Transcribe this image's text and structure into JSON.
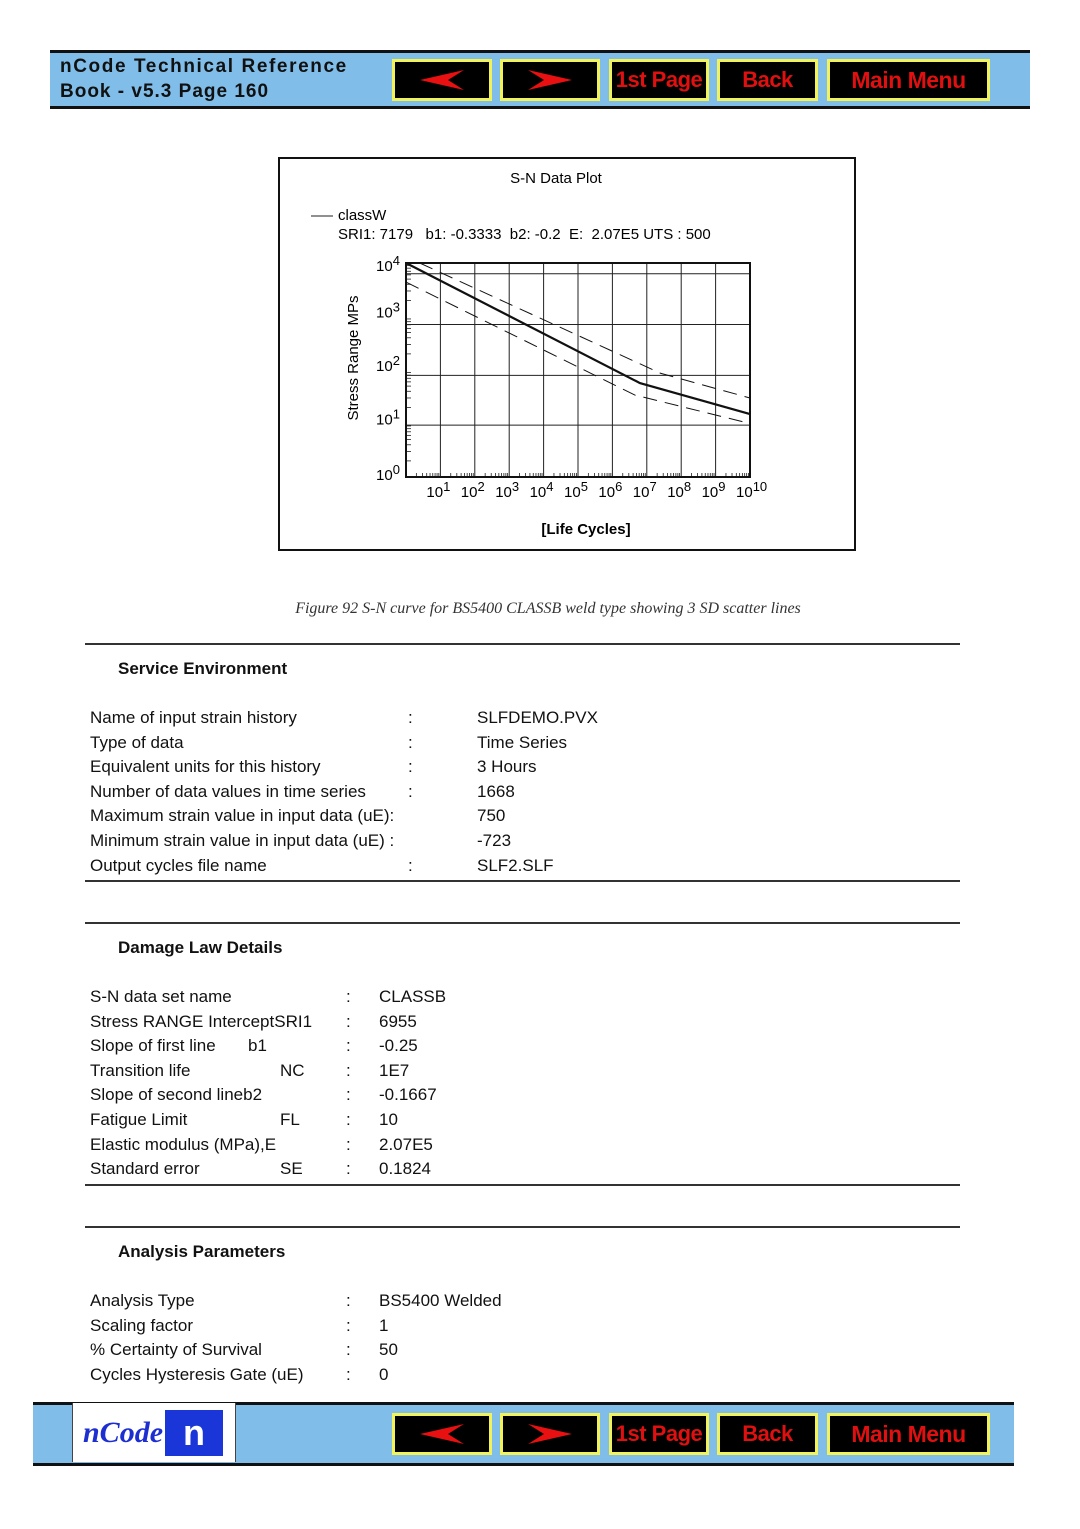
{
  "header": {
    "title_line1": "nCode Technical Reference",
    "title_line2": "Book - v5.3  Page 160"
  },
  "nav": {
    "prev_icon": "arrow-left-icon",
    "next_icon": "arrow-right-icon",
    "first_page": "1st Page",
    "back": "Back",
    "main_menu": "Main Menu"
  },
  "footer": {
    "logo_text": "nCode",
    "logo_mark": "n"
  },
  "colors": {
    "bar": "#80bde9",
    "button_bg": "#000000",
    "button_border": "#f2f25a",
    "button_text": "#e01010",
    "logo_blue": "#1a35d8"
  },
  "chart_data": {
    "type": "line",
    "title": "S-N Data Plot",
    "legend": {
      "entry": "classW",
      "placement": "top-left"
    },
    "params": "SRI1: 7179   b1: -0.3333  b2: -0.2  E:  2.07E5 UTS : 500",
    "xlabel": "[Life Cycles]",
    "ylabel": "Stress Range MPs",
    "xscale": "log",
    "yscale": "log",
    "xlim": [
      1,
      10000000000
    ],
    "ylim": [
      1,
      10000
    ],
    "x_ticks": [
      {
        "b": "10",
        "e": "1"
      },
      {
        "b": "10",
        "e": "2"
      },
      {
        "b": "10",
        "e": "3"
      },
      {
        "b": "10",
        "e": "4"
      },
      {
        "b": "10",
        "e": "5"
      },
      {
        "b": "10",
        "e": "6"
      },
      {
        "b": "10",
        "e": "7"
      },
      {
        "b": "10",
        "e": "8"
      },
      {
        "b": "10",
        "e": "9"
      },
      {
        "b": "10",
        "e": "10"
      }
    ],
    "y_ticks": [
      {
        "b": "10",
        "e": "0"
      },
      {
        "b": "10",
        "e": "1"
      },
      {
        "b": "10",
        "e": "2"
      },
      {
        "b": "10",
        "e": "3"
      },
      {
        "b": "10",
        "e": "4"
      }
    ],
    "grid": true,
    "series": [
      {
        "style": "solid",
        "points": [
          [
            1,
            10000
          ],
          [
            6300000,
            57
          ],
          [
            10000000000,
            15
          ]
        ]
      },
      {
        "style": "dashed",
        "points": [
          [
            2.5,
            10000
          ],
          [
            25000000,
            87
          ],
          [
            10000000000,
            30
          ]
        ]
      },
      {
        "style": "dashed",
        "points": [
          [
            1,
            4400
          ],
          [
            4500000,
            34
          ],
          [
            10000000000,
            10
          ]
        ]
      }
    ]
  },
  "caption": "Figure 92  S-N curve for BS5400 CLASSB weld type showing 3 SD scatter lines",
  "service": {
    "heading": "Service Environment",
    "rows": [
      {
        "label": "Name of input strain history",
        "sep": ":",
        "value": "SLFDEMO.PVX"
      },
      {
        "label": "Type of data",
        "sep": ":",
        "value": "Time Series"
      },
      {
        "label": "Equivalent units for this history",
        "sep": ":",
        "value": "3 Hours"
      },
      {
        "label": "Number of data values in time series",
        "sep": ":",
        "value": "1668"
      },
      {
        "label": "Maximum strain value in input data (uE):",
        "sep": "",
        "value": "750"
      },
      {
        "label": "Minimum strain value in input data (uE) :",
        "sep": "",
        "value": "-723"
      },
      {
        "label": "Output cycles file name",
        "sep": ":",
        "value": "SLF2.SLF"
      }
    ]
  },
  "damage": {
    "heading": "Damage Law Details",
    "rows": [
      {
        "label": "S-N data set name",
        "sym": "",
        "sep": ":",
        "value": "CLASSB"
      },
      {
        "label": "Stress RANGE InterceptSRI1",
        "sym": "",
        "sep": ":",
        "value": "6955"
      },
      {
        "label": "Slope of first line",
        "sym": "b1",
        "sep": ":",
        "value": "-0.25"
      },
      {
        "label": "Transition life",
        "sym": "NC",
        "sep": ":",
        "value": "1E7"
      },
      {
        "label": "Slope of second lineb2",
        "sym": "",
        "sep": ":",
        "value": "-0.1667"
      },
      {
        "label": "Fatigue Limit",
        "sym": "FL",
        "sep": ":",
        "value": "10"
      },
      {
        "label": "Elastic modulus (MPa),E",
        "sym": "",
        "sep": ":",
        "value": "2.07E5"
      },
      {
        "label": "Standard error",
        "sym": "SE",
        "sep": ":",
        "value": "0.1824"
      }
    ]
  },
  "analysis": {
    "heading": "Analysis Parameters",
    "rows": [
      {
        "label": "Analysis Type",
        "sep": ":",
        "value": "BS5400 Welded"
      },
      {
        "label": "Scaling factor",
        "sep": ":",
        "value": "1"
      },
      {
        "label": "% Certainty of Survival",
        "sep": ":",
        "value": "50"
      },
      {
        "label": "Cycles Hysteresis Gate (uE)",
        "sep": ":",
        "value": "0"
      }
    ]
  }
}
